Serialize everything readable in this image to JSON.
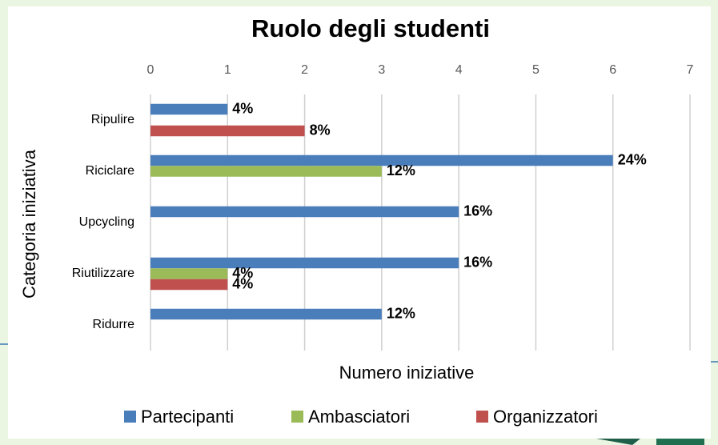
{
  "chart_data": {
    "type": "bar",
    "orientation": "horizontal",
    "title": "Ruolo degli studenti",
    "x_label": "Numero iniziative",
    "y_label": "Categoria iniziativa",
    "categories": [
      "Ripulire",
      "Riciclare",
      "Upcycling",
      "Riutilizzare",
      "Ridurre"
    ],
    "series": [
      {
        "name": "Partecipanti",
        "color": "#4a7ebb",
        "values": [
          1,
          6,
          4,
          4,
          3
        ],
        "value_labels": [
          "4%",
          "24%",
          "16%",
          "16%",
          "12%"
        ]
      },
      {
        "name": "Ambasciatori",
        "color": "#9bbb59",
        "values": [
          null,
          3,
          null,
          1,
          null
        ],
        "value_labels": [
          null,
          "12%",
          null,
          "4%",
          null
        ]
      },
      {
        "name": "Organizzatori",
        "color": "#c0504d",
        "values": [
          2,
          null,
          null,
          1,
          null
        ],
        "value_labels": [
          "8%",
          null,
          null,
          "4%",
          null
        ]
      }
    ],
    "xlim": [
      0,
      7
    ],
    "xticks": [
      0,
      1,
      2,
      3,
      4,
      5,
      6,
      7
    ],
    "grid": true,
    "legend": "bottom"
  }
}
